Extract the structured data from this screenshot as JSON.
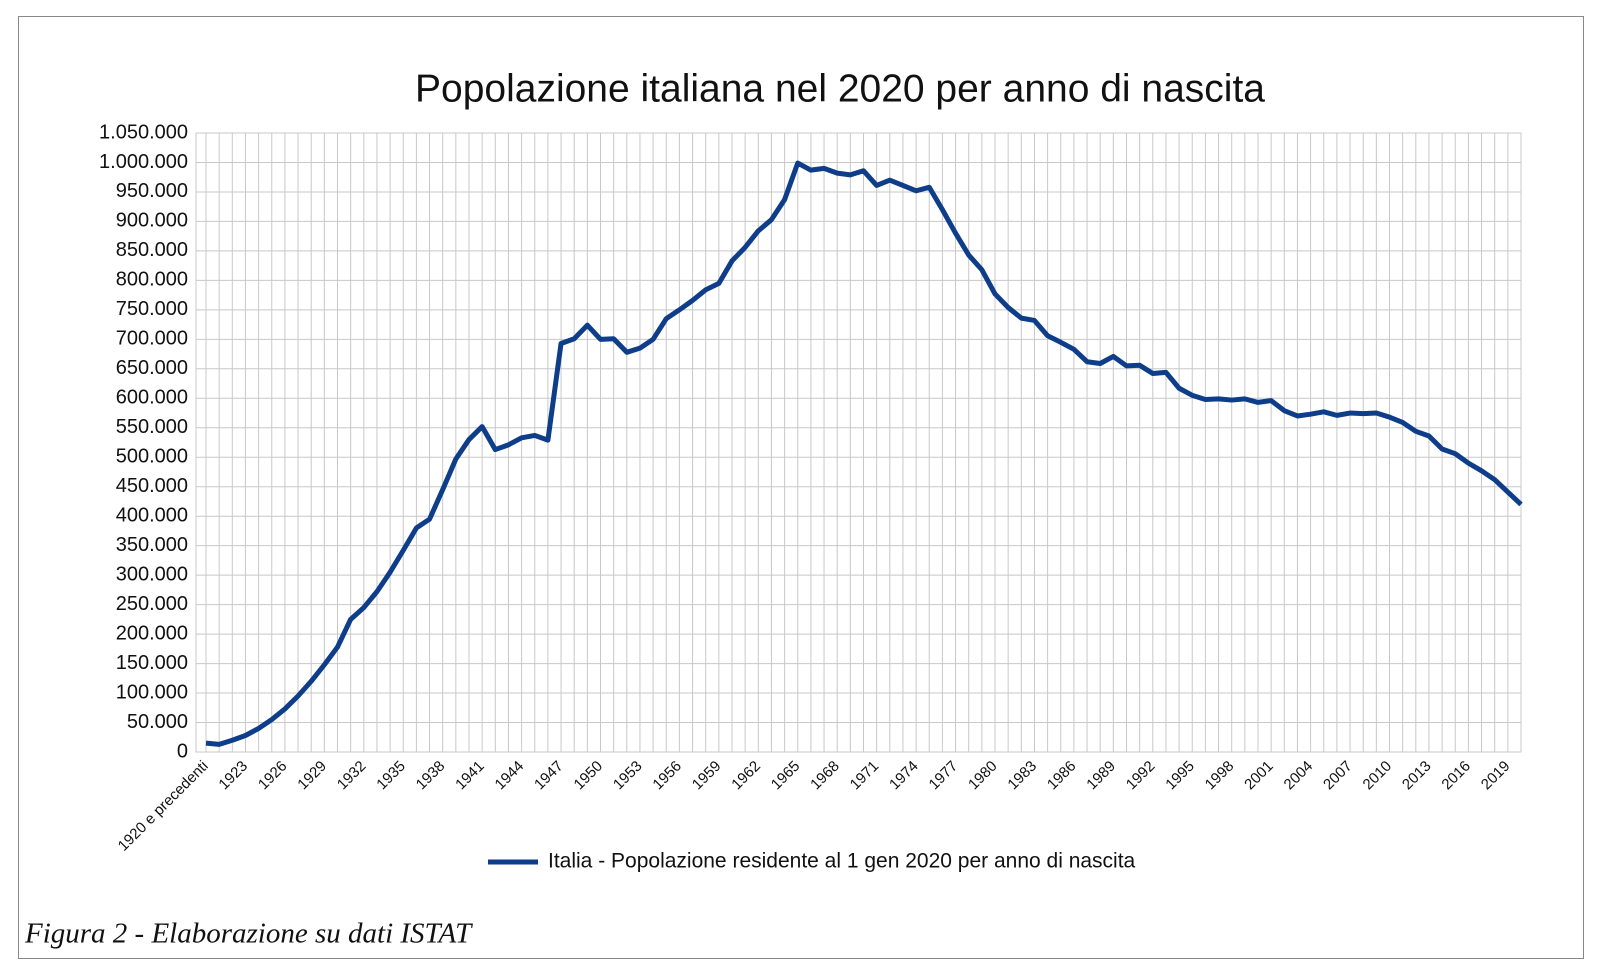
{
  "chart_data": {
    "type": "line",
    "title": "Popolazione italiana nel 2020 per anno di nascita",
    "categories": [
      "1920 e precedenti",
      null,
      null,
      "1923",
      null,
      null,
      "1926",
      null,
      null,
      "1929",
      null,
      null,
      "1932",
      null,
      null,
      "1935",
      null,
      null,
      "1938",
      null,
      null,
      "1941",
      null,
      null,
      "1944",
      null,
      null,
      "1947",
      null,
      null,
      "1950",
      null,
      null,
      "1953",
      null,
      null,
      "1956",
      null,
      null,
      "1959",
      null,
      null,
      "1962",
      null,
      null,
      "1965",
      null,
      null,
      "1968",
      null,
      null,
      "1971",
      null,
      null,
      "1974",
      null,
      null,
      "1977",
      null,
      null,
      "1980",
      null,
      null,
      "1983",
      null,
      null,
      "1986",
      null,
      null,
      "1989",
      null,
      null,
      "1992",
      null,
      null,
      "1995",
      null,
      null,
      "1998",
      null,
      null,
      "2001",
      null,
      null,
      "2004",
      null,
      null,
      "2007",
      null,
      null,
      "2010",
      null,
      null,
      "2013",
      null,
      null,
      "2016",
      null,
      null,
      "2019",
      null
    ],
    "series": [
      {
        "name": "Italia - Popolazione residente al 1 gen 2020 per anno di nascita",
        "color": "#0e3d8a",
        "values": [
          15000,
          13000,
          20000,
          28000,
          40000,
          55000,
          73000,
          95000,
          120000,
          148000,
          178000,
          225000,
          245000,
          272000,
          305000,
          342000,
          380000,
          395000,
          445000,
          497000,
          530000,
          552000,
          513000,
          521000,
          533000,
          537000,
          529000,
          693000,
          701000,
          724000,
          700000,
          701000,
          678000,
          685000,
          700000,
          735000,
          750000,
          766000,
          784000,
          795000,
          833000,
          856000,
          884000,
          903000,
          937000,
          999000,
          987000,
          990000,
          982000,
          979000,
          986000,
          961000,
          970000,
          961000,
          952000,
          958000,
          920000,
          880000,
          843000,
          818000,
          777000,
          754000,
          736000,
          732000,
          706000,
          695000,
          683000,
          662000,
          659000,
          671000,
          655000,
          656000,
          642000,
          644000,
          617000,
          605000,
          598000,
          599000,
          597000,
          599000,
          593000,
          596000,
          579000,
          570000,
          573000,
          577000,
          571000,
          575000,
          574000,
          575000,
          568000,
          559000,
          544000,
          536000,
          514000,
          506000,
          490000,
          477000,
          462000,
          441000,
          420000
        ]
      }
    ],
    "ylim": [
      0,
      1050000
    ],
    "yticks": [
      0,
      {
        "value": 50000,
        "label": "50.000"
      },
      {
        "value": 100000,
        "label": "100.000"
      },
      {
        "value": 150000,
        "label": "150.000"
      },
      {
        "value": 200000,
        "label": "200.000"
      },
      {
        "value": 250000,
        "label": "250.000"
      },
      {
        "value": 300000,
        "label": "300.000"
      },
      {
        "value": 350000,
        "label": "350.000"
      },
      {
        "value": 400000,
        "label": "400.000"
      },
      {
        "value": 450000,
        "label": "450.000"
      },
      {
        "value": 500000,
        "label": "500.000"
      },
      {
        "value": 550000,
        "label": "550.000"
      },
      {
        "value": 600000,
        "label": "600.000"
      },
      {
        "value": 650000,
        "label": "650.000"
      },
      {
        "value": 700000,
        "label": "700.000"
      },
      {
        "value": 750000,
        "label": "750.000"
      },
      {
        "value": 800000,
        "label": "800.000"
      },
      {
        "value": 850000,
        "label": "850.000"
      },
      {
        "value": 900000,
        "label": "900.000"
      },
      {
        "value": 950000,
        "label": "950.000"
      },
      {
        "value": 1000000,
        "label": "1.000.000"
      },
      {
        "value": 1050000,
        "label": "1.050.000"
      }
    ],
    "grid": true,
    "legend": "bottom"
  },
  "caption": "Figura 2 - Elaborazione su dati ISTAT"
}
